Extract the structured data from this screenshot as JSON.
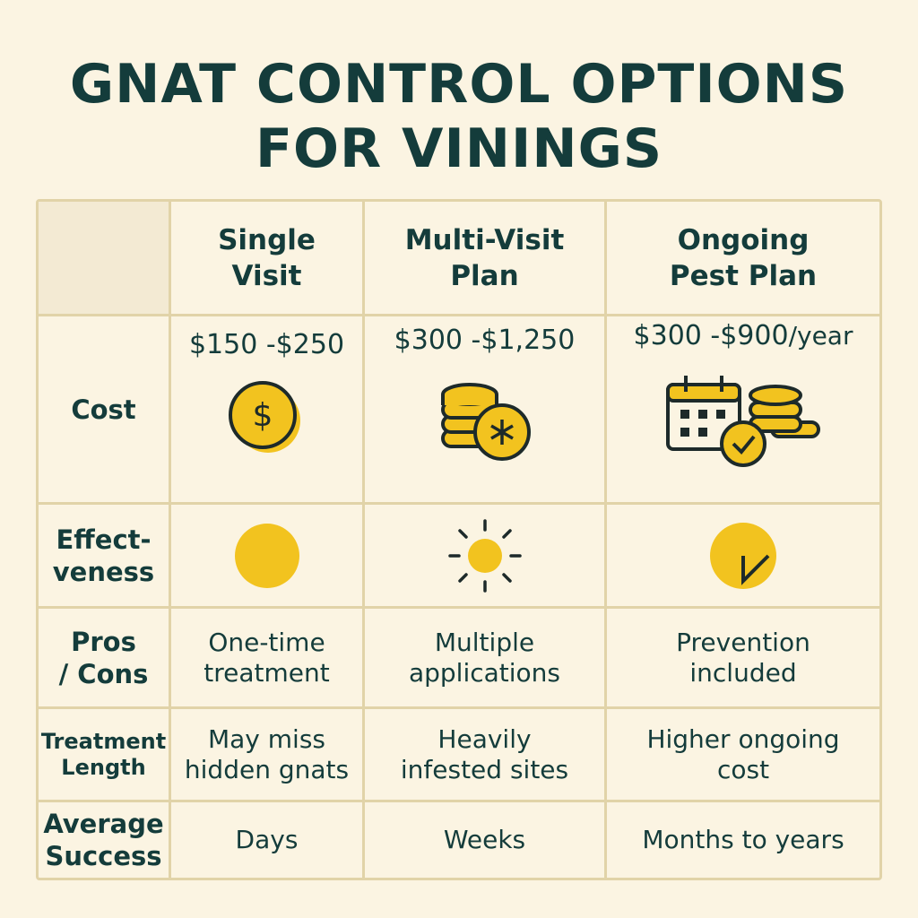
{
  "title": {
    "line1": "GNAT CONTROL OPTIONS",
    "line2": "FOR VININGS"
  },
  "columns": [
    {
      "line1": "Single",
      "line2": "Visit"
    },
    {
      "line1": "Multi-Visit",
      "line2": "Plan"
    },
    {
      "line1": "Ongoing",
      "line2": "Pest Plan"
    }
  ],
  "rows": {
    "cost": {
      "label": "Cost",
      "values": [
        "$150 -$250",
        "$300 -$1,250",
        "$300 -$900"
      ],
      "unit_third": "/year",
      "icons": [
        "dollar-coin-icon",
        "coin-stack-icon",
        "calendar-coins-icon"
      ]
    },
    "effectiveness": {
      "label_line1": "Effect-",
      "label_line2": "veness",
      "icons": [
        "full-circle-icon",
        "sun-icon",
        "clock-circle-icon"
      ]
    },
    "pros_cons": {
      "label_line1": "Pros",
      "label_line2": "/ Cons",
      "values": [
        {
          "line1": "One-time",
          "line2": "treatment"
        },
        {
          "line1": "Multiple",
          "line2": "applications"
        },
        {
          "line1": "Prevention",
          "line2": "included"
        }
      ]
    },
    "treatment_length": {
      "label_line1": "Treatment",
      "label_line2": "Length",
      "values": [
        {
          "line1": "May miss",
          "line2": "hidden gnats"
        },
        {
          "line1": "Heavily",
          "line2": "infested sites"
        },
        {
          "line1": "Higher ongoing",
          "line2": "cost"
        }
      ]
    },
    "average_success": {
      "label_line1": "Average",
      "label_line2": "Success",
      "values": [
        "Days",
        "Weeks",
        "Months to years"
      ]
    }
  },
  "colors": {
    "background": "#fbf4e2",
    "text": "#143c3b",
    "grid_line": "#e1d3a8",
    "icon_yellow": "#f2c31f",
    "icon_outline": "#1d2a2a"
  }
}
